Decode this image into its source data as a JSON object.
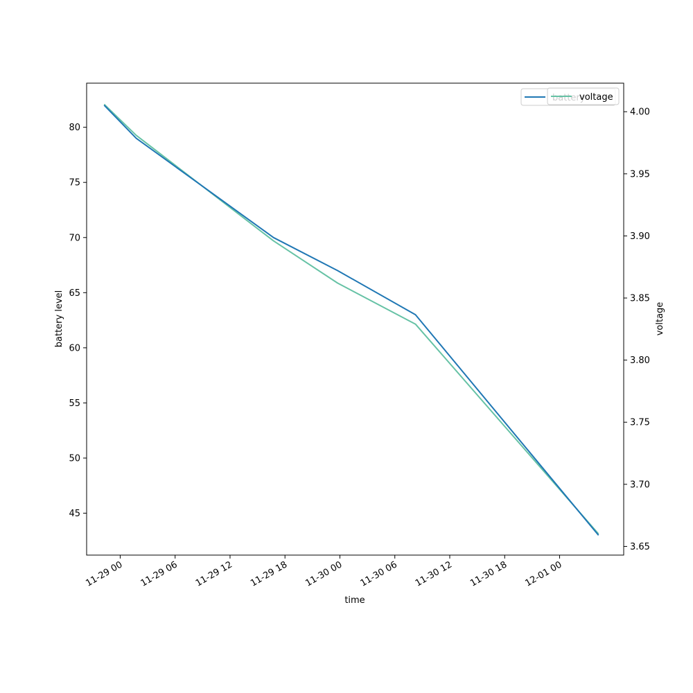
{
  "chart_data": {
    "type": "line",
    "xlabel": "time",
    "ylabel": "battery level",
    "y2label": "voltage",
    "xlim": [
      "2024-11-28T20:20",
      "2024-12-01T07:00"
    ],
    "ylim": [
      41.2,
      84.0
    ],
    "y2lim": [
      3.643,
      4.023
    ],
    "xticks": [
      {
        "t": "2024-11-29T00:00",
        "label": "11-29 00"
      },
      {
        "t": "2024-11-29T06:00",
        "label": "11-29 06"
      },
      {
        "t": "2024-11-29T12:00",
        "label": "11-29 12"
      },
      {
        "t": "2024-11-29T18:00",
        "label": "11-29 18"
      },
      {
        "t": "2024-11-30T00:00",
        "label": "11-30 00"
      },
      {
        "t": "2024-11-30T06:00",
        "label": "11-30 06"
      },
      {
        "t": "2024-11-30T12:00",
        "label": "11-30 12"
      },
      {
        "t": "2024-11-30T18:00",
        "label": "11-30 18"
      },
      {
        "t": "2024-12-01T00:00",
        "label": "12-01 00"
      }
    ],
    "yticks": [
      45,
      50,
      55,
      60,
      65,
      70,
      75,
      80
    ],
    "y2ticks": [
      3.65,
      3.7,
      3.75,
      3.8,
      3.85,
      3.9,
      3.95,
      4.0
    ],
    "grid": false,
    "legend_position": "top-right",
    "series": [
      {
        "name": "battery",
        "axis": "left",
        "color": "#1f77b4",
        "x": [
          "2024-11-28T22:15",
          "2024-11-29T01:45",
          "2024-11-29T16:45",
          "2024-11-29T23:45",
          "2024-11-30T08:15",
          "2024-12-01T04:15"
        ],
        "y": [
          82,
          79,
          70,
          67,
          63,
          43
        ]
      },
      {
        "name": "voltage",
        "axis": "right",
        "color": "#66c2a5",
        "x": [
          "2024-11-28T22:15",
          "2024-11-29T01:45",
          "2024-11-29T16:45",
          "2024-11-29T23:45",
          "2024-11-30T08:15",
          "2024-12-01T04:15"
        ],
        "y": [
          4.006,
          3.981,
          3.896,
          3.862,
          3.829,
          3.66
        ]
      }
    ]
  }
}
